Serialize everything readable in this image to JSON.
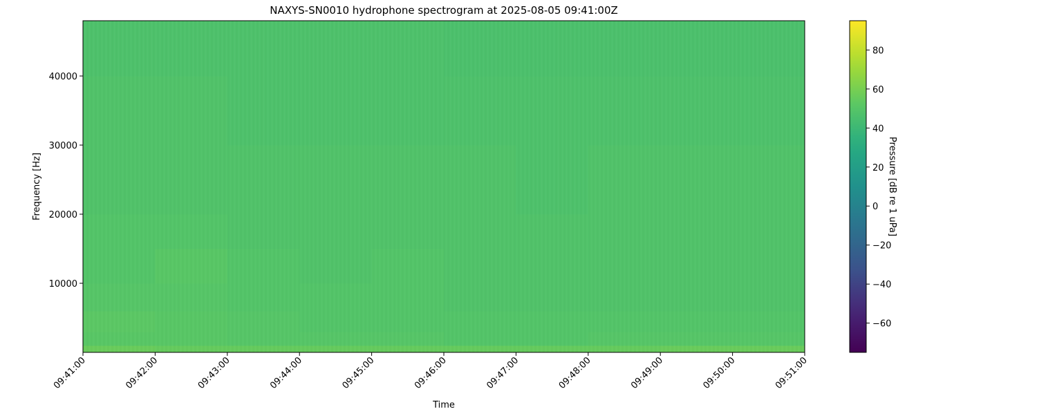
{
  "chart_data": {
    "type": "heatmap",
    "title": "NAXYS-SN0010 hydrophone spectrogram at 2025-08-05 09:41:00Z",
    "xlabel": "Time",
    "ylabel": "Frequency [Hz]",
    "colorbar_label": "Pressure [dB re 1 uPa]",
    "colormap": "viridis",
    "clim": [
      -75,
      95
    ],
    "xlim": [
      "09:41:00",
      "09:51:00"
    ],
    "ylim": [
      0,
      48000
    ],
    "x_ticks": [
      "09:41:00",
      "09:42:00",
      "09:43:00",
      "09:44:00",
      "09:45:00",
      "09:46:00",
      "09:47:00",
      "09:48:00",
      "09:49:00",
      "09:50:00",
      "09:51:00"
    ],
    "y_ticks": [
      10000,
      20000,
      30000,
      40000
    ],
    "y_tick_labels": [
      "10000",
      "20000",
      "30000",
      "40000"
    ],
    "colorbar_ticks": [
      -60,
      -40,
      -20,
      0,
      20,
      40,
      60,
      80
    ],
    "colorbar_tick_labels": [
      "−60",
      "−40",
      "−20",
      "0",
      "20",
      "40",
      "60",
      "80"
    ],
    "time_bins": [
      "09:41",
      "09:42",
      "09:43",
      "09:44",
      "09:45",
      "09:46",
      "09:47",
      "09:48",
      "09:49",
      "09:50"
    ],
    "frequency_band_edges": [
      0,
      1000,
      3000,
      6000,
      10000,
      15000,
      20000,
      30000,
      40000,
      48000
    ],
    "values_db": [
      [
        56,
        55,
        55,
        55,
        55,
        55,
        55,
        55,
        56,
        56
      ],
      [
        51,
        51,
        50,
        50,
        50,
        49,
        49,
        50,
        50,
        50
      ],
      [
        52,
        51,
        50,
        49,
        49,
        49,
        49,
        49,
        49,
        49
      ],
      [
        50,
        50,
        49,
        49,
        49,
        48,
        48,
        48,
        48,
        48
      ],
      [
        49,
        51,
        49,
        48,
        49,
        48,
        48,
        48,
        48,
        48
      ],
      [
        49,
        49,
        48,
        48,
        48,
        48,
        48,
        48,
        48,
        48
      ],
      [
        48,
        48,
        48,
        48,
        48,
        48,
        47,
        48,
        48,
        48
      ],
      [
        48,
        48,
        47,
        47,
        47,
        47,
        47,
        47,
        47,
        47
      ],
      [
        47,
        47,
        47,
        47,
        47,
        46,
        46,
        46,
        46,
        46
      ]
    ],
    "grid": false
  }
}
